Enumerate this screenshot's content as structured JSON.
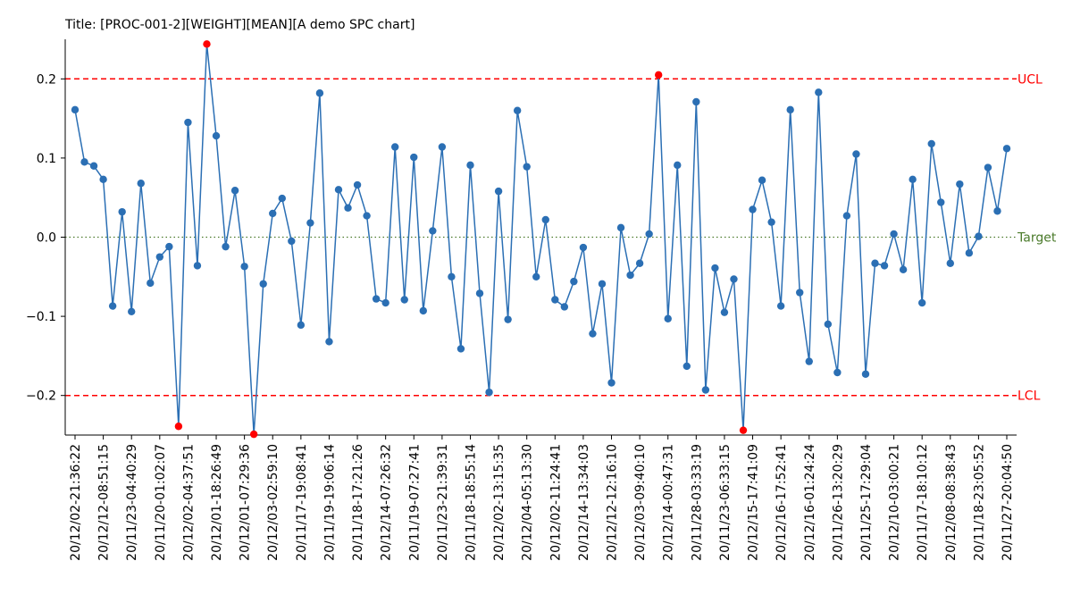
{
  "chart_data": {
    "type": "line",
    "title": "Title: [PROC-001-2][WEIGHT][MEAN][A demo SPC chart]",
    "xlabel": "",
    "ylabel": "",
    "ylim": [
      -0.25,
      0.25
    ],
    "yticks": [
      -0.2,
      -0.1,
      0.0,
      0.1,
      0.2
    ],
    "ytick_labels": [
      "−0.2",
      "−0.1",
      "0.0",
      "0.1",
      "0.2"
    ],
    "grid": false,
    "x": [
      0,
      1,
      2,
      3,
      4,
      5,
      6,
      7,
      8,
      9,
      10,
      11,
      12,
      13,
      14,
      15,
      16,
      17,
      18,
      19,
      20,
      21,
      22,
      23,
      24,
      25,
      26,
      27,
      28,
      29,
      30,
      31,
      32,
      33,
      34,
      35,
      36,
      37,
      38,
      39,
      40,
      41,
      42,
      43,
      44,
      45,
      46,
      47,
      48,
      49,
      50,
      51,
      52,
      53,
      54,
      55,
      56,
      57,
      58,
      59,
      60,
      61,
      62,
      63,
      64,
      65,
      66,
      67,
      68,
      69,
      70,
      71,
      72,
      73,
      74,
      75,
      76,
      77,
      78,
      79,
      80,
      81,
      82,
      83,
      84,
      85,
      86,
      87,
      88,
      89,
      90,
      91,
      92,
      93,
      94,
      95,
      96,
      97,
      98,
      99
    ],
    "x_tick_positions": [
      0,
      3,
      6,
      9,
      12,
      15,
      18,
      21,
      24,
      27,
      30,
      33,
      36,
      39,
      42,
      45,
      48,
      51,
      54,
      57,
      60,
      63,
      66,
      69,
      72,
      75,
      78,
      81,
      84,
      87,
      90,
      93,
      96,
      99
    ],
    "x_tick_labels": [
      "20/12/02-21:36:22",
      "20/12/12-08:51:15",
      "20/11/23-04:40:29",
      "20/11/20-01:02:07",
      "20/12/02-04:37:51",
      "20/12/01-18:26:49",
      "20/12/01-07:29:36",
      "20/12/03-02:59:10",
      "20/11/17-19:08:41",
      "20/11/19-19:06:14",
      "20/11/18-17:21:26",
      "20/12/14-07:26:32",
      "20/11/19-07:27:41",
      "20/11/23-21:39:31",
      "20/11/18-18:55:14",
      "20/12/02-13:15:35",
      "20/12/04-05:13:30",
      "20/12/02-11:24:41",
      "20/12/14-13:34:03",
      "20/12/12-12:16:10",
      "20/12/03-09:40:10",
      "20/12/14-00:47:31",
      "20/11/28-03:33:19",
      "20/11/23-06:33:15",
      "20/12/15-17:41:09",
      "20/12/16-17:52:41",
      "20/12/16-01:24:24",
      "20/11/26-13:20:29",
      "20/11/25-17:29:04",
      "20/12/10-03:00:21",
      "20/11/17-18:10:12",
      "20/12/08-08:38:43",
      "20/11/18-23:05:52",
      "20/11/27-20:04:50"
    ],
    "series": [
      {
        "values": [
          0.161,
          0.095,
          0.09,
          0.073,
          -0.087,
          0.032,
          -0.094,
          0.068,
          -0.058,
          -0.025,
          -0.012,
          -0.239,
          0.145,
          -0.036,
          0.244,
          0.128,
          -0.012,
          0.059,
          -0.037,
          -0.249,
          -0.059,
          0.03,
          0.049,
          -0.005,
          -0.111,
          0.018,
          0.182,
          -0.132,
          0.06,
          0.037,
          0.066,
          0.027,
          -0.078,
          -0.083,
          0.114,
          -0.079,
          0.101,
          -0.093,
          0.008,
          0.114,
          -0.05,
          -0.141,
          0.091,
          -0.071,
          -0.196,
          0.058,
          -0.104,
          0.16,
          0.089,
          -0.05,
          0.022,
          -0.079,
          -0.088,
          -0.056,
          -0.013,
          -0.122,
          -0.059,
          -0.184,
          0.012,
          -0.048,
          -0.033,
          0.004,
          0.205,
          -0.103,
          0.091,
          -0.163,
          0.171,
          -0.193,
          -0.039,
          -0.095,
          -0.053,
          -0.244,
          0.035,
          0.072,
          0.019,
          -0.087,
          0.161,
          -0.07,
          -0.157,
          0.183,
          -0.11,
          -0.171,
          0.027,
          0.105,
          -0.173,
          -0.033,
          -0.036,
          0.004,
          -0.041,
          0.073,
          -0.083,
          0.118,
          0.044,
          -0.033,
          0.067,
          -0.02,
          0.001,
          0.088,
          0.033,
          0.112
        ],
        "color": "#2b6fb4",
        "marker_color": "#2b6fb4"
      }
    ],
    "out_of_control_color": "#ff0000",
    "limits": [
      {
        "label": "UCL",
        "value": 0.2,
        "color": "#ff0000",
        "style": "dashed"
      },
      {
        "label": "Target",
        "value": 0.0,
        "color": "#4a7a2a",
        "style": "dotted"
      },
      {
        "label": "LCL",
        "value": -0.2,
        "color": "#ff0000",
        "style": "dashed"
      }
    ]
  }
}
